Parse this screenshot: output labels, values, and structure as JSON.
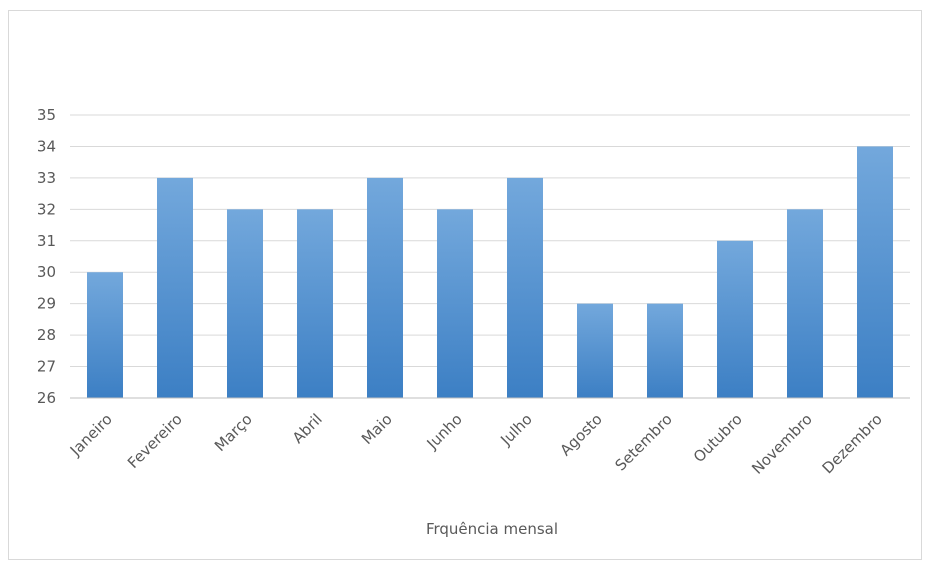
{
  "chart_data": {
    "type": "bar",
    "categories": [
      "Janeiro",
      "Fevereiro",
      "Março",
      "Abril",
      "Maio",
      "Junho",
      "Julho",
      "Agosto",
      "Setembro",
      "Outubro",
      "Novembro",
      "Dezembro"
    ],
    "values": [
      30,
      33,
      32,
      32,
      33,
      32,
      33,
      29,
      29,
      31,
      32,
      34
    ],
    "title": "",
    "xlabel": "Frquência mensal",
    "ylabel": "",
    "ylim": [
      26,
      35
    ],
    "yticks": [
      26,
      27,
      28,
      29,
      30,
      31,
      32,
      33,
      34,
      35
    ],
    "grid": true,
    "legend": "none",
    "colors": {
      "bar_light": "#73a8dc",
      "bar_dark": "#3c7fc4",
      "grid": "#d9d9d9",
      "axis": "#bfbfbf",
      "text": "#595959"
    }
  }
}
